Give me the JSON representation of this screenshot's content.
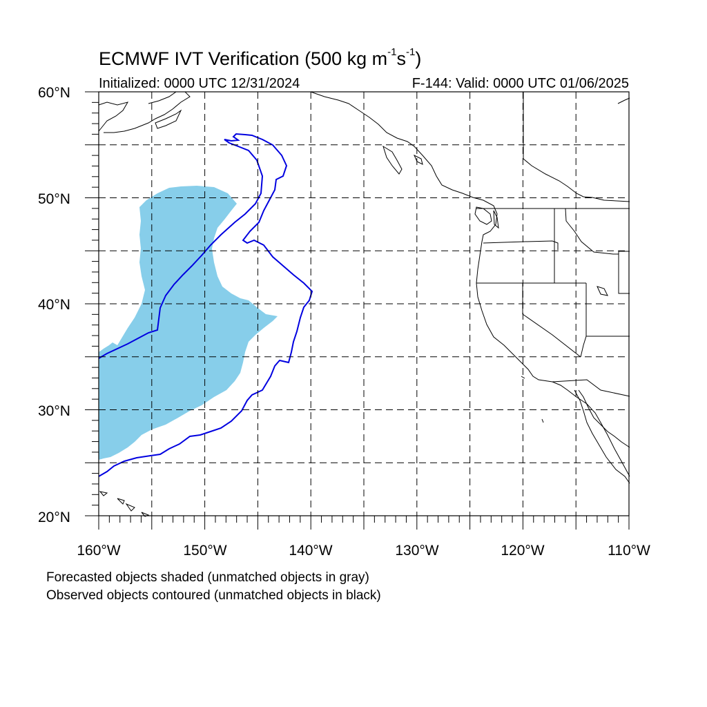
{
  "header": {
    "title_main": "ECMWF IVT Verification (500 kg m",
    "title_exp1": "-1",
    "title_mid": "s",
    "title_exp2": "-1",
    "title_end": ")",
    "initialized": "Initialized: 0000 UTC 12/31/2024",
    "valid": "F-144: Valid: 0000 UTC 01/06/2025"
  },
  "axes": {
    "lat_labels": [
      "60°N",
      "50°N",
      "40°N",
      "30°N",
      "20°N"
    ],
    "lon_labels": [
      "160°W",
      "150°W",
      "140°W",
      "130°W",
      "120°W",
      "110°W"
    ],
    "lat_range": [
      20,
      60
    ],
    "lon_range": [
      -160,
      -110
    ]
  },
  "legend": {
    "line1": "Forecasted objects shaded (unmatched objects in gray)",
    "line2": "Observed objects contoured (unmatched objects in black)"
  },
  "colors": {
    "forecast_fill": "#87ceea",
    "observed_contour": "#0000e0",
    "coastline": "#000000",
    "grid": "#000000"
  }
}
